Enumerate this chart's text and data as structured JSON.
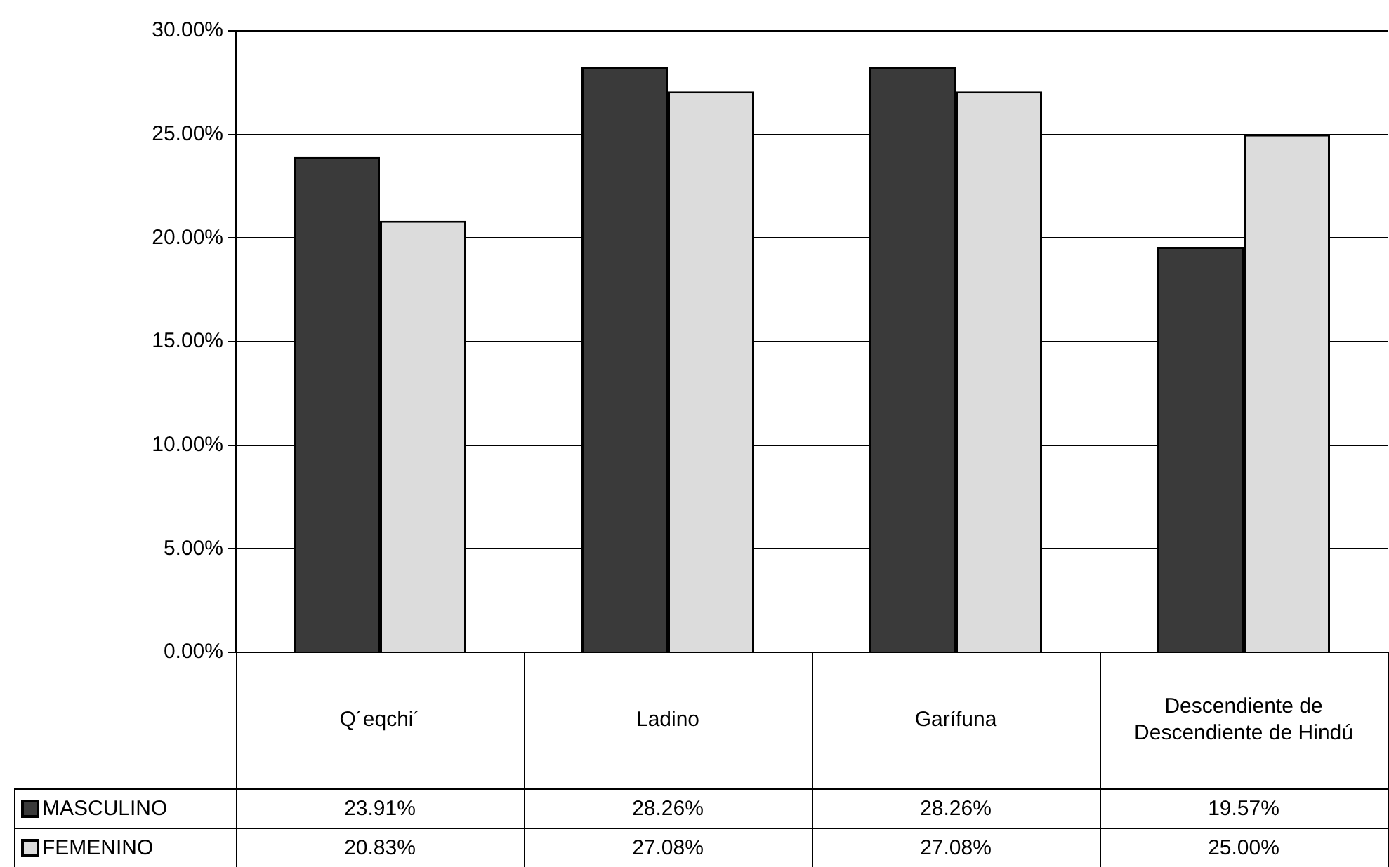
{
  "chart_data": {
    "type": "bar",
    "categories": [
      "Q´eqchi´",
      "Ladino",
      "Garífuna",
      "Descendiente de Descendiente de Hindú"
    ],
    "series": [
      {
        "name": "MASCULINO",
        "color": "#3a3a3a",
        "values": [
          23.91,
          28.26,
          28.26,
          19.57
        ],
        "value_labels": [
          "23.91%",
          "28.26%",
          "28.26%",
          "19.57%"
        ]
      },
      {
        "name": "FEMENINO",
        "color": "#dcdcdc",
        "values": [
          20.83,
          27.08,
          27.08,
          25.0
        ],
        "value_labels": [
          "20.83%",
          "27.08%",
          "27.08%",
          "25.00%"
        ]
      }
    ],
    "ylim": [
      0,
      30
    ],
    "yticks": [
      {
        "value": 0,
        "label": "0.00%"
      },
      {
        "value": 5,
        "label": "5.00%"
      },
      {
        "value": 10,
        "label": "10.00%"
      },
      {
        "value": 15,
        "label": "15.00%"
      },
      {
        "value": 20,
        "label": "20.00%"
      },
      {
        "value": 25,
        "label": "25.00%"
      },
      {
        "value": 30,
        "label": "30.00%"
      }
    ],
    "grid": "y",
    "legend": "bottom"
  }
}
